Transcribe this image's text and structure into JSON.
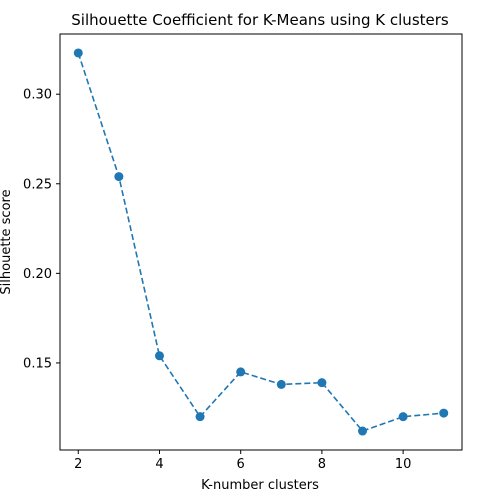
{
  "chart_data": {
    "type": "line",
    "title": "Silhouette Coefficient for K-Means using K clusters",
    "xlabel": "K-number clusters",
    "ylabel": "Silhouette score",
    "x": [
      2,
      3,
      4,
      5,
      6,
      7,
      8,
      9,
      10,
      11
    ],
    "series": [
      {
        "values": [
          0.323,
          0.254,
          0.154,
          0.12,
          0.145,
          0.138,
          0.139,
          0.112,
          0.12,
          0.122
        ],
        "color": "#1f77b4",
        "line_style": "dashed",
        "marker": "circle"
      }
    ],
    "xlim": [
      1.55,
      11.45
    ],
    "ylim": [
      0.1014,
      0.3336
    ],
    "xticks": [
      2,
      4,
      6,
      8,
      10
    ],
    "xtick_labels": [
      "2",
      "4",
      "6",
      "8",
      "10"
    ],
    "yticks": [
      0.15,
      0.2,
      0.25,
      0.3
    ],
    "ytick_labels": [
      "0.15",
      "0.20",
      "0.25",
      "0.30"
    ],
    "grid": false,
    "legend": false
  }
}
